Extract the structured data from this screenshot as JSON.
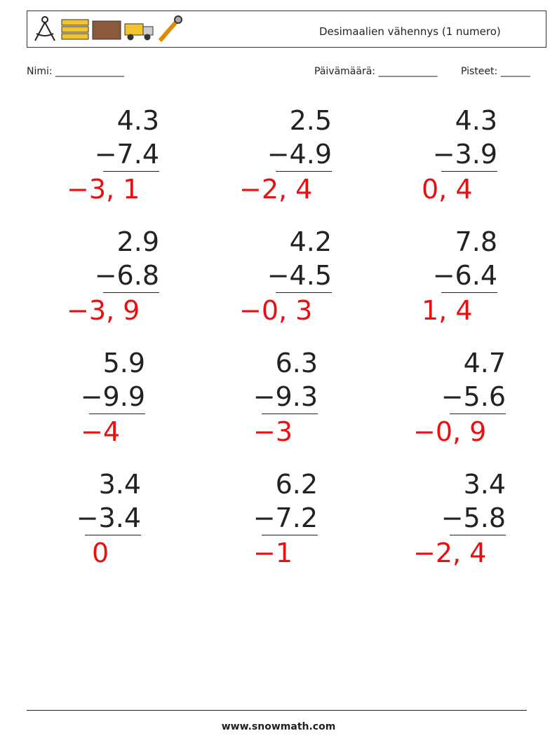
{
  "header": {
    "title": "Desimaalien vähennys (1 numero)"
  },
  "fields": {
    "name": "Nimi: ______________",
    "date": "Päivämäärä: ____________",
    "score": "Pisteet: ______"
  },
  "problems": [
    {
      "top": "4.3",
      "bottom": "−7.4",
      "answer": "−3, 1"
    },
    {
      "top": "2.5",
      "bottom": "−4.9",
      "answer": "−2, 4"
    },
    {
      "top": "4.3",
      "bottom": "−3.9",
      "answer": "0, 4"
    },
    {
      "top": "2.9",
      "bottom": "−6.8",
      "answer": "−3, 9"
    },
    {
      "top": "4.2",
      "bottom": "−4.5",
      "answer": "−0, 3"
    },
    {
      "top": "7.8",
      "bottom": "−6.4",
      "answer": "1, 4"
    },
    {
      "top": "5.9",
      "bottom": "−9.9",
      "answer": "−4"
    },
    {
      "top": "6.3",
      "bottom": "−9.3",
      "answer": "−3"
    },
    {
      "top": "4.7",
      "bottom": "−5.6",
      "answer": "−0, 9"
    },
    {
      "top": "3.4",
      "bottom": "−3.4",
      "answer": "0"
    },
    {
      "top": "6.2",
      "bottom": "−7.2",
      "answer": "−1"
    },
    {
      "top": "3.4",
      "bottom": "−5.8",
      "answer": "−2, 4"
    }
  ],
  "footer": "www.snowmath.com"
}
